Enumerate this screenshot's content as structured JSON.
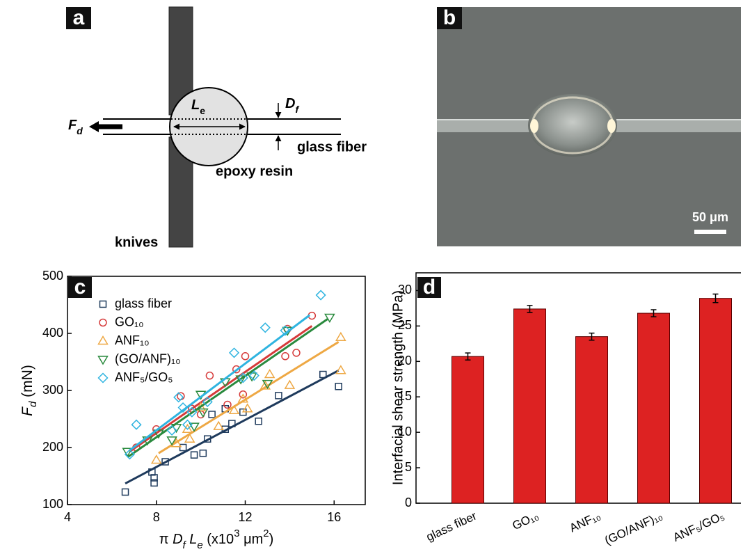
{
  "panel_labels": [
    "a",
    "b",
    "c",
    "d"
  ],
  "diagram": {
    "Le": [
      "L",
      "e"
    ],
    "Df": [
      "D",
      "f"
    ],
    "Fd": [
      "F",
      "d"
    ],
    "fiber": "glass fiber",
    "resin": "epoxy resin",
    "knives": "knives"
  },
  "image": {
    "scale_bar": "50 μm"
  },
  "chart_data": [
    {
      "type": "scatter",
      "xlabel": [
        "π ",
        "D",
        "f",
        " L",
        "e",
        " (x10",
        "3",
        " μm",
        "2",
        ")"
      ],
      "ylabel": [
        "F",
        "d",
        " (mN)"
      ],
      "xlim": [
        4,
        17.4
      ],
      "xticks": [
        4,
        8,
        12,
        16
      ],
      "ylim": [
        100,
        500
      ],
      "yticks": [
        100,
        200,
        300,
        400,
        500
      ],
      "series": [
        {
          "name": "glass fiber",
          "color": "#1e3a5c",
          "marker": "square",
          "x": [
            6.6,
            7.8,
            7.9,
            7.9,
            8.4,
            9.2,
            9.7,
            10.1,
            10.3,
            10.5,
            11.1,
            11.4,
            11.1,
            11.9,
            12.6,
            13.5,
            15.5,
            16.2
          ],
          "values": [
            122,
            157,
            147,
            138,
            175,
            200,
            187,
            190,
            215,
            258,
            232,
            242,
            268,
            262,
            246,
            291,
            328,
            307
          ],
          "fit": {
            "x": [
              6.6,
              16.2
            ],
            "values": [
              137,
              335
            ]
          }
        },
        {
          "name": "GO₁₀",
          "color": "#d63a3a",
          "marker": "circle",
          "x": [
            7.1,
            8.0,
            9.1,
            9.6,
            10.0,
            10.4,
            11.2,
            11.6,
            11.9,
            12.0,
            13.8,
            13.9,
            14.3,
            15.0
          ],
          "values": [
            200,
            232,
            290,
            268,
            258,
            326,
            275,
            337,
            293,
            360,
            360,
            408,
            366,
            431
          ],
          "fit": {
            "x": [
              6.8,
              15.0
            ],
            "values": [
              193,
              413
            ]
          }
        },
        {
          "name": "ANF₁₀",
          "color": "#eea844",
          "marker": "triangle-up",
          "x": [
            8.0,
            8.9,
            9.5,
            9.4,
            10.0,
            10.8,
            11.5,
            11.9,
            12.1,
            12.9,
            13.1,
            14.0,
            16.3,
            16.3
          ],
          "values": [
            178,
            207,
            215,
            232,
            270,
            237,
            265,
            285,
            268,
            308,
            328,
            309,
            393,
            335
          ],
          "fit": {
            "x": [
              8.1,
              16.2
            ],
            "values": [
              190,
              385
            ]
          }
        },
        {
          "name": "(GO/ANF)₁₀",
          "color": "#2a8a3e",
          "marker": "triangle-down",
          "x": [
            6.7,
            7.6,
            8.1,
            8.7,
            8.9,
            9.7,
            10.0,
            10.1,
            11.1,
            11.8,
            12.3,
            13.0,
            13.9,
            15.8
          ],
          "values": [
            193,
            213,
            225,
            213,
            235,
            237,
            293,
            262,
            315,
            320,
            325,
            312,
            405,
            428
          ],
          "fit": {
            "x": [
              6.7,
              15.7
            ],
            "values": [
              183,
              425
            ]
          }
        },
        {
          "name": "ANF₅/GO₅",
          "color": "#2fb4e0",
          "marker": "diamond",
          "x": [
            6.8,
            7.1,
            8.7,
            9.0,
            9.2,
            9.4,
            9.6,
            10.3,
            11.5,
            11.9,
            12.4,
            12.9,
            13.8,
            15.4
          ],
          "values": [
            188,
            240,
            230,
            288,
            270,
            240,
            262,
            280,
            366,
            322,
            326,
            410,
            405,
            467
          ],
          "fit": {
            "x": [
              6.8,
              14.9
            ],
            "values": [
              195,
              432
            ]
          }
        }
      ]
    },
    {
      "type": "bar",
      "ylabel": "Interfacial shear strength (MPa)",
      "categories": [
        "glass fiber",
        "GO₁₀",
        "ANF₁₀",
        "(GO/ANF)₁₀",
        "ANF₅/GO₅"
      ],
      "values": [
        20.7,
        27.4,
        23.5,
        26.8,
        28.9
      ],
      "errors": [
        0.5,
        0.5,
        0.5,
        0.5,
        0.6
      ],
      "color": "#dd2222",
      "ylim": [
        0,
        32.5
      ],
      "yticks": [
        0,
        5,
        10,
        15,
        20,
        25,
        30
      ]
    }
  ]
}
